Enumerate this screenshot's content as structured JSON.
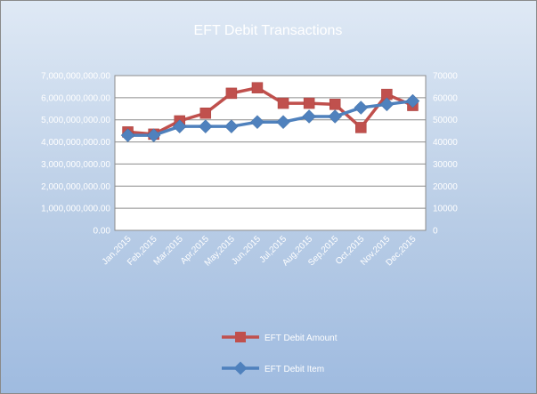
{
  "chart_data": {
    "type": "line",
    "title": "EFT Debit Transactions",
    "categories": [
      "Jan,2015",
      "Feb,2015",
      "Mar,2015",
      "Apr,2015",
      "May,2015",
      "Jun,2015",
      "Jul,2015",
      "Aug,2015",
      "Sep,2015",
      "Oct,2015",
      "Nov,2015",
      "Dec,2015"
    ],
    "primary_axis": {
      "ylim": [
        0,
        7000000000
      ],
      "tick_labels": [
        "0.00",
        "1,000,000,000.00",
        "2,000,000,000.00",
        "3,000,000,000.00",
        "4,000,000,000.00",
        "5,000,000,000.00",
        "6,000,000,000.00",
        "7,000,000,000.00"
      ]
    },
    "secondary_axis": {
      "ylim": [
        0,
        70000
      ],
      "tick_labels": [
        "0",
        "10000",
        "20000",
        "30000",
        "40000",
        "50000",
        "60000",
        "70000"
      ]
    },
    "series": [
      {
        "name": "EFT Debit Amount",
        "axis": "primary",
        "color": "#c0504d",
        "marker": "square",
        "values": [
          4450000000,
          4350000000,
          4950000000,
          5300000000,
          6200000000,
          6450000000,
          5750000000,
          5750000000,
          5700000000,
          4650000000,
          6150000000,
          5650000000
        ]
      },
      {
        "name": "EFT Debit Item",
        "axis": "secondary",
        "color": "#4f81bd",
        "marker": "diamond",
        "values": [
          43000,
          43000,
          47000,
          47000,
          47000,
          49000,
          49000,
          51500,
          51500,
          55500,
          57000,
          58500
        ]
      }
    ],
    "legend_position": "bottom",
    "grid": true
  }
}
